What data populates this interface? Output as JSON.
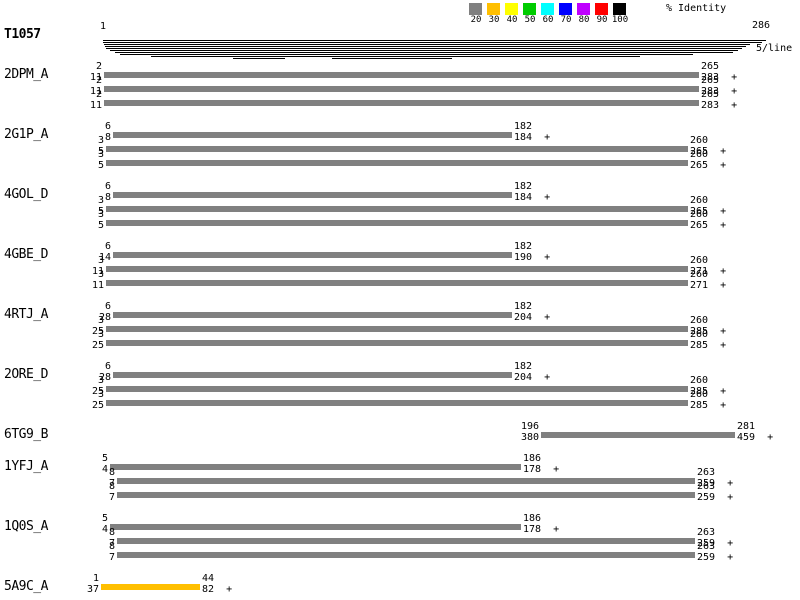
{
  "title": "T1057",
  "ruler": {
    "start": "1",
    "end": "286",
    "per_line": "5/line"
  },
  "legend": {
    "title": "% Identity",
    "entries": [
      {
        "label": "20",
        "color": "#808080"
      },
      {
        "label": "30",
        "color": "#FFBF00"
      },
      {
        "label": "40",
        "color": "#FFFF00"
      },
      {
        "label": "50",
        "color": "#00CC00"
      },
      {
        "label": "60",
        "color": "#00FFFF"
      },
      {
        "label": "70",
        "color": "#0000FF"
      },
      {
        "label": "80",
        "color": "#BF00FF"
      },
      {
        "label": "90",
        "color": "#FF0000"
      },
      {
        "label": "100",
        "color": "#000000"
      }
    ]
  },
  "chart_data": {
    "type": "alignment-coverage",
    "query": {
      "name": "T1057",
      "start": 1,
      "length": 286
    },
    "hits_per_line": 5,
    "coverage_lines": [
      {
        "y": 40,
        "segments": [
          [
            103,
            766
          ]
        ]
      },
      {
        "y": 42,
        "segments": [
          [
            103,
            762
          ]
        ]
      },
      {
        "y": 44,
        "segments": [
          [
            104,
            750
          ]
        ]
      },
      {
        "y": 46,
        "segments": [
          [
            105,
            746
          ]
        ]
      },
      {
        "y": 48,
        "segments": [
          [
            106,
            742
          ]
        ]
      },
      {
        "y": 50,
        "segments": [
          [
            110,
            738
          ]
        ]
      },
      {
        "y": 52,
        "segments": [
          [
            115,
            733
          ]
        ]
      },
      {
        "y": 54,
        "segments": [
          [
            120,
            693
          ]
        ]
      },
      {
        "y": 56,
        "segments": [
          [
            151,
            640
          ]
        ]
      },
      {
        "y": 58,
        "segments": [
          [
            233,
            285
          ],
          [
            332,
            452
          ]
        ]
      }
    ],
    "groups": [
      {
        "id": "2DPM_A",
        "hits": [
          {
            "query_start": 2,
            "query_end": 265,
            "hit_start": 11,
            "hit_end": 283,
            "strand": "+",
            "identity_bin": "20"
          },
          {
            "query_start": 2,
            "query_end": 265,
            "hit_start": 11,
            "hit_end": 283,
            "strand": "+",
            "identity_bin": "20"
          },
          {
            "query_start": 2,
            "query_end": 265,
            "hit_start": 11,
            "hit_end": 283,
            "strand": "+",
            "identity_bin": "20"
          }
        ]
      },
      {
        "id": "2G1P_A",
        "hits": [
          {
            "query_start": 6,
            "query_end": 182,
            "hit_start": 8,
            "hit_end": 184,
            "strand": "+",
            "identity_bin": "20"
          },
          {
            "query_start": 3,
            "query_end": 260,
            "hit_start": 5,
            "hit_end": 265,
            "strand": "+",
            "identity_bin": "20"
          },
          {
            "query_start": 3,
            "query_end": 260,
            "hit_start": 5,
            "hit_end": 265,
            "strand": "+",
            "identity_bin": "20"
          }
        ]
      },
      {
        "id": "4GOL_D",
        "hits": [
          {
            "query_start": 6,
            "query_end": 182,
            "hit_start": 8,
            "hit_end": 184,
            "strand": "+",
            "identity_bin": "20"
          },
          {
            "query_start": 3,
            "query_end": 260,
            "hit_start": 5,
            "hit_end": 265,
            "strand": "+",
            "identity_bin": "20"
          },
          {
            "query_start": 3,
            "query_end": 260,
            "hit_start": 5,
            "hit_end": 265,
            "strand": "+",
            "identity_bin": "20"
          }
        ]
      },
      {
        "id": "4GBE_D",
        "hits": [
          {
            "query_start": 6,
            "query_end": 182,
            "hit_start": 14,
            "hit_end": 190,
            "strand": "+",
            "identity_bin": "20"
          },
          {
            "query_start": 3,
            "query_end": 260,
            "hit_start": 11,
            "hit_end": 271,
            "strand": "+",
            "identity_bin": "20"
          },
          {
            "query_start": 3,
            "query_end": 260,
            "hit_start": 11,
            "hit_end": 271,
            "strand": "+",
            "identity_bin": "20"
          }
        ]
      },
      {
        "id": "4RTJ_A",
        "hits": [
          {
            "query_start": 6,
            "query_end": 182,
            "hit_start": 28,
            "hit_end": 204,
            "strand": "+",
            "identity_bin": "20"
          },
          {
            "query_start": 3,
            "query_end": 260,
            "hit_start": 25,
            "hit_end": 285,
            "strand": "+",
            "identity_bin": "20"
          },
          {
            "query_start": 3,
            "query_end": 260,
            "hit_start": 25,
            "hit_end": 285,
            "strand": "+",
            "identity_bin": "20"
          }
        ]
      },
      {
        "id": "2ORE_D",
        "hits": [
          {
            "query_start": 6,
            "query_end": 182,
            "hit_start": 28,
            "hit_end": 204,
            "strand": "+",
            "identity_bin": "20"
          },
          {
            "query_start": 3,
            "query_end": 260,
            "hit_start": 25,
            "hit_end": 285,
            "strand": "+",
            "identity_bin": "20"
          },
          {
            "query_start": 3,
            "query_end": 260,
            "hit_start": 25,
            "hit_end": 285,
            "strand": "+",
            "identity_bin": "20"
          }
        ]
      },
      {
        "id": "6TG9_B",
        "hits": [
          {
            "query_start": 196,
            "query_end": 281,
            "hit_start": 380,
            "hit_end": 459,
            "strand": "+",
            "identity_bin": "20"
          }
        ]
      },
      {
        "id": "1YFJ_A",
        "hits": [
          {
            "query_start": 5,
            "query_end": 186,
            "hit_start": 4,
            "hit_end": 178,
            "strand": "+",
            "identity_bin": "20"
          },
          {
            "query_start": 8,
            "query_end": 263,
            "hit_start": 7,
            "hit_end": 259,
            "strand": "+",
            "identity_bin": "20"
          },
          {
            "query_start": 8,
            "query_end": 263,
            "hit_start": 7,
            "hit_end": 259,
            "strand": "+",
            "identity_bin": "20"
          }
        ]
      },
      {
        "id": "1Q0S_A",
        "hits": [
          {
            "query_start": 5,
            "query_end": 186,
            "hit_start": 4,
            "hit_end": 178,
            "strand": "+",
            "identity_bin": "20"
          },
          {
            "query_start": 8,
            "query_end": 263,
            "hit_start": 7,
            "hit_end": 259,
            "strand": "+",
            "identity_bin": "20"
          },
          {
            "query_start": 8,
            "query_end": 263,
            "hit_start": 7,
            "hit_end": 259,
            "strand": "+",
            "identity_bin": "20"
          }
        ]
      },
      {
        "id": "5A9C_A",
        "hits": [
          {
            "query_start": 1,
            "query_end": 44,
            "hit_start": 37,
            "hit_end": 82,
            "strand": "+",
            "identity_bin": "30"
          }
        ]
      }
    ]
  }
}
